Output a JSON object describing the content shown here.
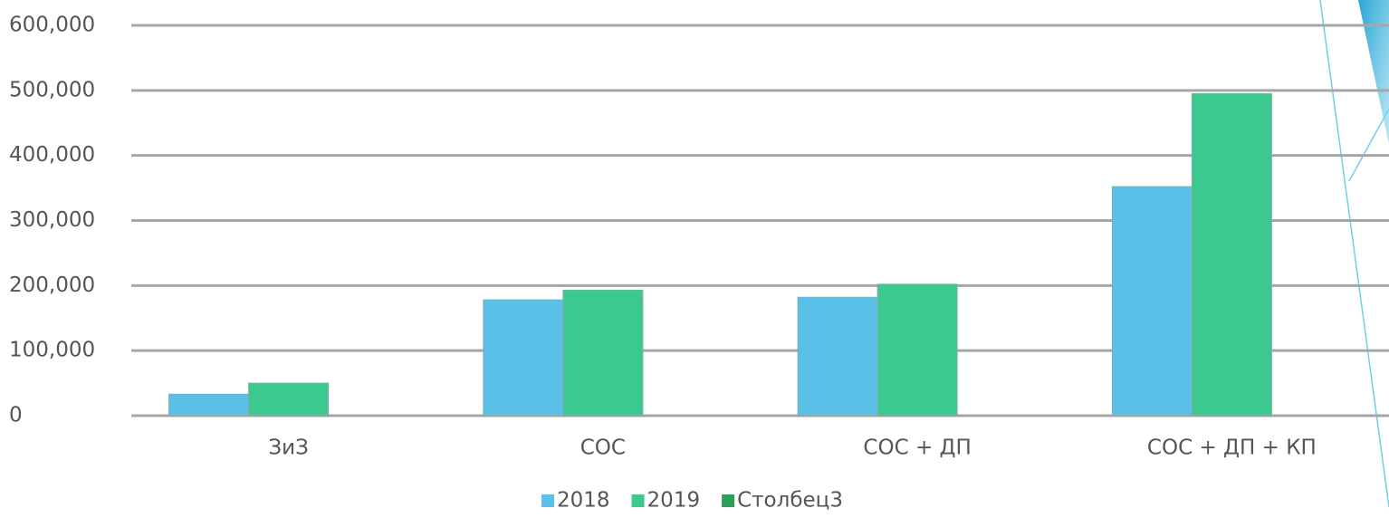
{
  "chart_data": {
    "type": "bar",
    "categories": [
      "ЗиЗ",
      "СОС",
      "СОС + ДП",
      "СОС + ДП + КП"
    ],
    "series": [
      {
        "name": "2018",
        "color": "#5bc0e8",
        "values": [
          33000,
          178000,
          182000,
          352000
        ]
      },
      {
        "name": "2019",
        "color": "#3cc98f",
        "values": [
          50000,
          193000,
          202000,
          495000
        ]
      },
      {
        "name": "Столбец3",
        "color": "#2e9e5b",
        "values": [
          null,
          null,
          null,
          null
        ]
      }
    ],
    "ylim": [
      0,
      600000
    ],
    "yticks": [
      0,
      {
        "value": 100000,
        "label": "100,000"
      },
      {
        "value": 200000,
        "label": "200,000"
      },
      {
        "value": 300000,
        "label": "300,000"
      },
      {
        "value": 400000,
        "label": "400,000"
      },
      {
        "value": 500000,
        "label": "500,000"
      },
      {
        "value": 600000,
        "label": "600,000"
      }
    ],
    "grid": true,
    "legend": "bottom"
  }
}
